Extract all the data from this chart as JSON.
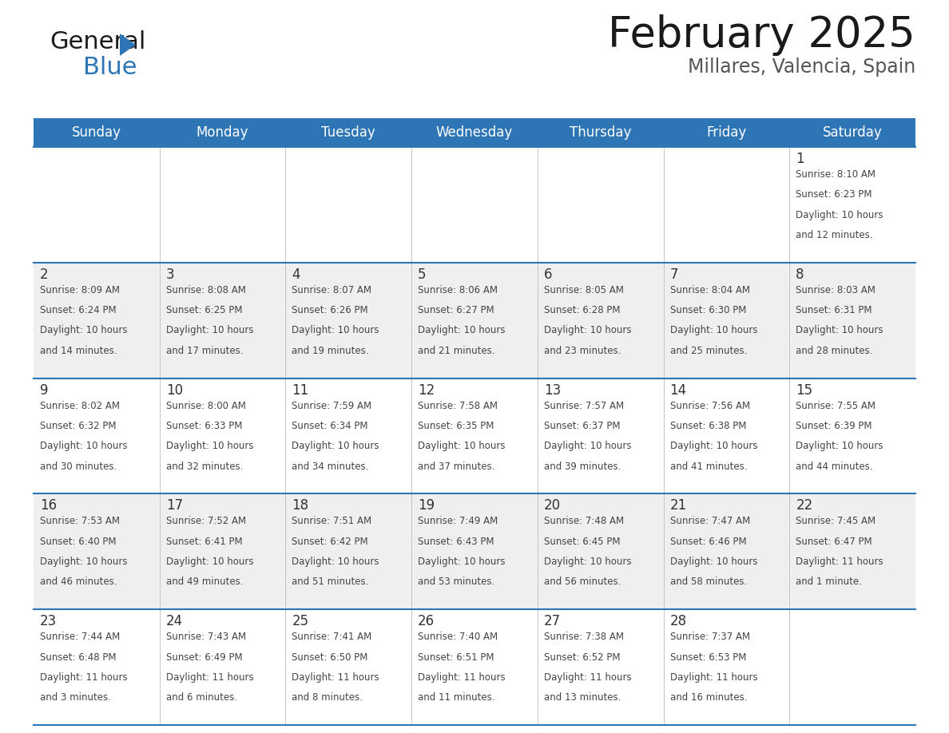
{
  "title": "February 2025",
  "subtitle": "Millares, Valencia, Spain",
  "header_color": "#2E75B6",
  "header_text_color": "#FFFFFF",
  "days_of_week": [
    "Sunday",
    "Monday",
    "Tuesday",
    "Wednesday",
    "Thursday",
    "Friday",
    "Saturday"
  ],
  "background_color": "#FFFFFF",
  "cell_bg_even": "#EFEFEF",
  "cell_bg_odd": "#FFFFFF",
  "border_color": "#2E75B6",
  "day_number_color": "#333333",
  "text_color": "#444444",
  "calendar_data": [
    [
      null,
      null,
      null,
      null,
      null,
      null,
      {
        "day": 1,
        "sunrise": "8:10 AM",
        "sunset": "6:23 PM",
        "daylight": "10 hours\nand 12 minutes."
      }
    ],
    [
      {
        "day": 2,
        "sunrise": "8:09 AM",
        "sunset": "6:24 PM",
        "daylight": "10 hours\nand 14 minutes."
      },
      {
        "day": 3,
        "sunrise": "8:08 AM",
        "sunset": "6:25 PM",
        "daylight": "10 hours\nand 17 minutes."
      },
      {
        "day": 4,
        "sunrise": "8:07 AM",
        "sunset": "6:26 PM",
        "daylight": "10 hours\nand 19 minutes."
      },
      {
        "day": 5,
        "sunrise": "8:06 AM",
        "sunset": "6:27 PM",
        "daylight": "10 hours\nand 21 minutes."
      },
      {
        "day": 6,
        "sunrise": "8:05 AM",
        "sunset": "6:28 PM",
        "daylight": "10 hours\nand 23 minutes."
      },
      {
        "day": 7,
        "sunrise": "8:04 AM",
        "sunset": "6:30 PM",
        "daylight": "10 hours\nand 25 minutes."
      },
      {
        "day": 8,
        "sunrise": "8:03 AM",
        "sunset": "6:31 PM",
        "daylight": "10 hours\nand 28 minutes."
      }
    ],
    [
      {
        "day": 9,
        "sunrise": "8:02 AM",
        "sunset": "6:32 PM",
        "daylight": "10 hours\nand 30 minutes."
      },
      {
        "day": 10,
        "sunrise": "8:00 AM",
        "sunset": "6:33 PM",
        "daylight": "10 hours\nand 32 minutes."
      },
      {
        "day": 11,
        "sunrise": "7:59 AM",
        "sunset": "6:34 PM",
        "daylight": "10 hours\nand 34 minutes."
      },
      {
        "day": 12,
        "sunrise": "7:58 AM",
        "sunset": "6:35 PM",
        "daylight": "10 hours\nand 37 minutes."
      },
      {
        "day": 13,
        "sunrise": "7:57 AM",
        "sunset": "6:37 PM",
        "daylight": "10 hours\nand 39 minutes."
      },
      {
        "day": 14,
        "sunrise": "7:56 AM",
        "sunset": "6:38 PM",
        "daylight": "10 hours\nand 41 minutes."
      },
      {
        "day": 15,
        "sunrise": "7:55 AM",
        "sunset": "6:39 PM",
        "daylight": "10 hours\nand 44 minutes."
      }
    ],
    [
      {
        "day": 16,
        "sunrise": "7:53 AM",
        "sunset": "6:40 PM",
        "daylight": "10 hours\nand 46 minutes."
      },
      {
        "day": 17,
        "sunrise": "7:52 AM",
        "sunset": "6:41 PM",
        "daylight": "10 hours\nand 49 minutes."
      },
      {
        "day": 18,
        "sunrise": "7:51 AM",
        "sunset": "6:42 PM",
        "daylight": "10 hours\nand 51 minutes."
      },
      {
        "day": 19,
        "sunrise": "7:49 AM",
        "sunset": "6:43 PM",
        "daylight": "10 hours\nand 53 minutes."
      },
      {
        "day": 20,
        "sunrise": "7:48 AM",
        "sunset": "6:45 PM",
        "daylight": "10 hours\nand 56 minutes."
      },
      {
        "day": 21,
        "sunrise": "7:47 AM",
        "sunset": "6:46 PM",
        "daylight": "10 hours\nand 58 minutes."
      },
      {
        "day": 22,
        "sunrise": "7:45 AM",
        "sunset": "6:47 PM",
        "daylight": "11 hours\nand 1 minute."
      }
    ],
    [
      {
        "day": 23,
        "sunrise": "7:44 AM",
        "sunset": "6:48 PM",
        "daylight": "11 hours\nand 3 minutes."
      },
      {
        "day": 24,
        "sunrise": "7:43 AM",
        "sunset": "6:49 PM",
        "daylight": "11 hours\nand 6 minutes."
      },
      {
        "day": 25,
        "sunrise": "7:41 AM",
        "sunset": "6:50 PM",
        "daylight": "11 hours\nand 8 minutes."
      },
      {
        "day": 26,
        "sunrise": "7:40 AM",
        "sunset": "6:51 PM",
        "daylight": "11 hours\nand 11 minutes."
      },
      {
        "day": 27,
        "sunrise": "7:38 AM",
        "sunset": "6:52 PM",
        "daylight": "11 hours\nand 13 minutes."
      },
      {
        "day": 28,
        "sunrise": "7:37 AM",
        "sunset": "6:53 PM",
        "daylight": "11 hours\nand 16 minutes."
      },
      null
    ]
  ],
  "logo_text_general": "General",
  "logo_text_blue": "Blue",
  "logo_color_general": "#1a1a1a",
  "logo_color_blue": "#2E75B6",
  "title_fontsize": 38,
  "subtitle_fontsize": 17,
  "header_fontsize": 12,
  "day_num_fontsize": 12,
  "cell_text_fontsize": 8.5
}
